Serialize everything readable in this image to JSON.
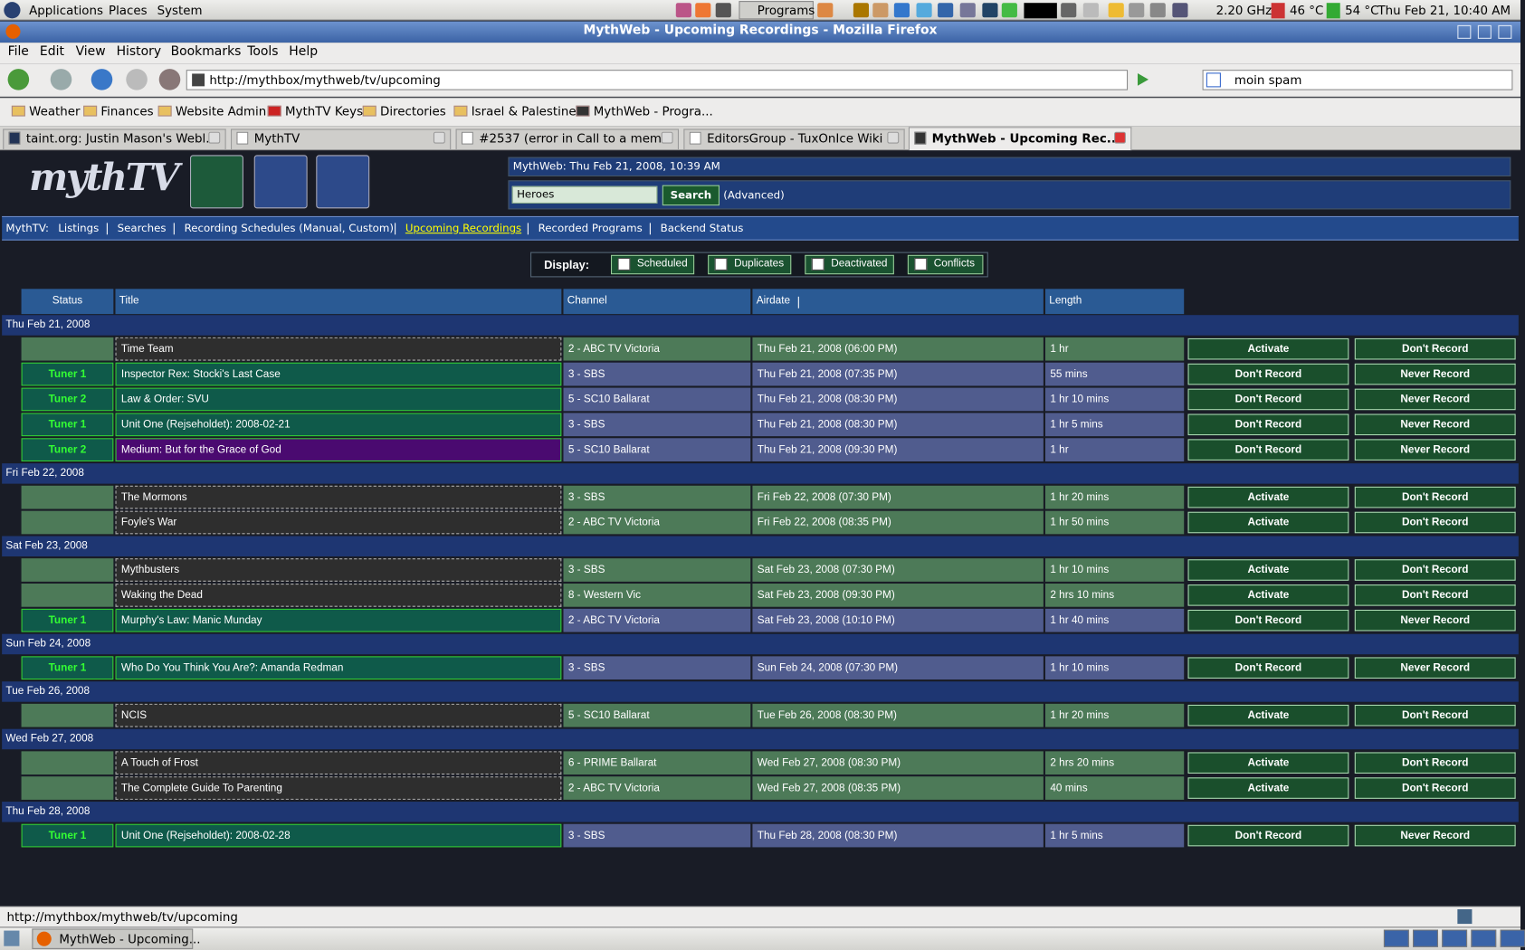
{
  "panel": {
    "menus": [
      "Applications",
      "Places",
      "System"
    ],
    "programs": "Programs",
    "cpu": "2.20 GHz",
    "temp1": "46 °C",
    "temp2": "54 °C",
    "clock": "Thu Feb 21, 10:40 AM"
  },
  "window_title": "MythWeb - Upcoming Recordings - Mozilla Firefox",
  "menu": [
    "File",
    "Edit",
    "View",
    "History",
    "Bookmarks",
    "Tools",
    "Help"
  ],
  "url": "http://mythbox/mythweb/tv/upcoming",
  "search_box": "moin spam",
  "bookmarks": [
    "Weather",
    "Finances",
    "Website Admin",
    "MythTV Keys",
    "Directories",
    "Israel & Palestine",
    "MythWeb - Progra..."
  ],
  "tabs": [
    "taint.org: Justin Mason's Webl...",
    "MythTV",
    "#2537 (error in Call to a mem...",
    "EditorsGroup - TuxOnIce Wiki",
    "MythWeb - Upcoming Rec..."
  ],
  "mythweb": {
    "logo": "mythTV",
    "status_line": "MythWeb: Thu Feb 21, 2008, 10:39 AM",
    "search_value": "Heroes",
    "search_button": "Search",
    "advanced": "(Advanced)",
    "nav_label": "MythTV:",
    "nav": [
      "Listings",
      "Searches",
      "Recording Schedules (Manual, Custom)",
      "Upcoming Recordings",
      "Recorded Programs",
      "Backend Status"
    ],
    "display_label": "Display:",
    "filters": [
      "Scheduled",
      "Duplicates",
      "Deactivated",
      "Conflicts"
    ],
    "columns": [
      "Status",
      "Title",
      "Channel",
      "Airdate",
      "Length"
    ],
    "groups": [
      {
        "date": "Thu Feb 21, 2008",
        "rows": [
          {
            "title": "Time Team",
            "channel": "2 - ABC TV Victoria",
            "airdate": "Thu Feb 21, 2008 (06:00 PM)",
            "length": "1 hr",
            "actions": [
              "Activate",
              "Don't Record"
            ]
          },
          {
            "status": "Tuner 1",
            "title": "Inspector Rex: Stocki's Last Case",
            "channel": "3 - SBS",
            "airdate": "Thu Feb 21, 2008 (07:35 PM)",
            "length": "55 mins",
            "actions": [
              "Don't Record",
              "Never Record"
            ]
          },
          {
            "status": "Tuner 2",
            "title": "Law & Order: SVU",
            "channel": "5 - SC10 Ballarat",
            "airdate": "Thu Feb 21, 2008 (08:30 PM)",
            "length": "1 hr 10 mins",
            "actions": [
              "Don't Record",
              "Never Record"
            ]
          },
          {
            "status": "Tuner 1",
            "title": "Unit One (Rejseholdet): 2008-02-21",
            "channel": "3 - SBS",
            "airdate": "Thu Feb 21, 2008 (08:30 PM)",
            "length": "1 hr 5 mins",
            "actions": [
              "Don't Record",
              "Never Record"
            ]
          },
          {
            "status": "Tuner 2",
            "title": "Medium: But for the Grace of God",
            "channel": "5 - SC10 Ballarat",
            "airdate": "Thu Feb 21, 2008 (09:30 PM)",
            "length": "1 hr",
            "actions": [
              "Don't Record",
              "Never Record"
            ]
          }
        ]
      },
      {
        "date": "Fri Feb 22, 2008",
        "rows": [
          {
            "title": "The Mormons",
            "channel": "3 - SBS",
            "airdate": "Fri Feb 22, 2008 (07:30 PM)",
            "length": "1 hr 20 mins",
            "actions": [
              "Activate",
              "Don't Record"
            ]
          },
          {
            "title": "Foyle's War",
            "channel": "2 - ABC TV Victoria",
            "airdate": "Fri Feb 22, 2008 (08:35 PM)",
            "length": "1 hr 50 mins",
            "actions": [
              "Activate",
              "Don't Record"
            ]
          }
        ]
      },
      {
        "date": "Sat Feb 23, 2008",
        "rows": [
          {
            "title": "Mythbusters",
            "channel": "3 - SBS",
            "airdate": "Sat Feb 23, 2008 (07:30 PM)",
            "length": "1 hr 10 mins",
            "actions": [
              "Activate",
              "Don't Record"
            ]
          },
          {
            "title": "Waking the Dead",
            "channel": "8 - Western Vic",
            "airdate": "Sat Feb 23, 2008 (09:30 PM)",
            "length": "2 hrs 10 mins",
            "actions": [
              "Activate",
              "Don't Record"
            ]
          },
          {
            "status": "Tuner 1",
            "title": "Murphy's Law: Manic Munday",
            "channel": "2 - ABC TV Victoria",
            "airdate": "Sat Feb 23, 2008 (10:10 PM)",
            "length": "1 hr 40 mins",
            "actions": [
              "Don't Record",
              "Never Record"
            ]
          }
        ]
      },
      {
        "date": "Sun Feb 24, 2008",
        "rows": [
          {
            "status": "Tuner 1",
            "title": "Who Do You Think You Are?: Amanda Redman",
            "channel": "3 - SBS",
            "airdate": "Sun Feb 24, 2008 (07:30 PM)",
            "length": "1 hr 10 mins",
            "actions": [
              "Don't Record",
              "Never Record"
            ]
          }
        ]
      },
      {
        "date": "Tue Feb 26, 2008",
        "rows": [
          {
            "title": "NCIS",
            "channel": "5 - SC10 Ballarat",
            "airdate": "Tue Feb 26, 2008 (08:30 PM)",
            "length": "1 hr 20 mins",
            "actions": [
              "Activate",
              "Don't Record"
            ]
          }
        ]
      },
      {
        "date": "Wed Feb 27, 2008",
        "rows": [
          {
            "title": "A Touch of Frost",
            "channel": "6 - PRIME Ballarat",
            "airdate": "Wed Feb 27, 2008 (08:30 PM)",
            "length": "2 hrs 20 mins",
            "actions": [
              "Activate",
              "Don't Record"
            ]
          },
          {
            "title": "The Complete Guide To Parenting",
            "channel": "2 - ABC TV Victoria",
            "airdate": "Wed Feb 27, 2008 (08:35 PM)",
            "length": "40 mins",
            "actions": [
              "Activate",
              "Don't Record"
            ]
          }
        ]
      },
      {
        "date": "Thu Feb 28, 2008",
        "rows": [
          {
            "status": "Tuner 1",
            "title": "Unit One (Rejseholdet): 2008-02-28",
            "channel": "3 - SBS",
            "airdate": "Thu Feb 28, 2008 (08:30 PM)",
            "length": "1 hr 5 mins",
            "actions": [
              "Don't Record",
              "Never Record"
            ]
          }
        ]
      }
    ]
  },
  "status_bar": "http://mythbox/mythweb/tv/upcoming",
  "taskbar_item": "MythWeb - Upcoming..."
}
